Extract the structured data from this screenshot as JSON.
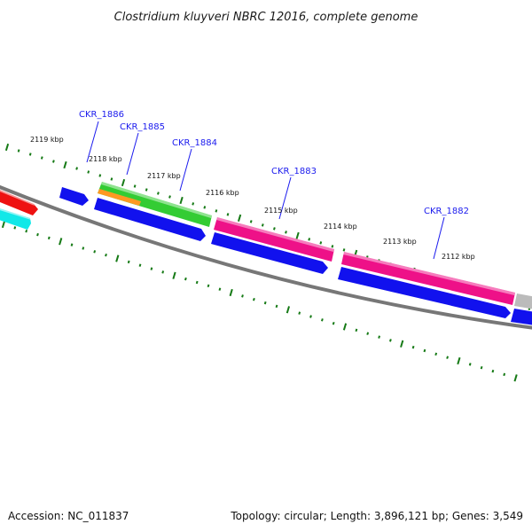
{
  "title": "Clostridium kluyveri NBRC 12016, complete genome",
  "accession": "Accession: NC_011837",
  "summary": "Topology: circular; Length: 3,896,121 bp; Genes: 3,549",
  "colors": {
    "tick": "#167a16",
    "backbone": "#777777",
    "gene_label": "#1a1aee",
    "leader_line": "#1a1aee"
  },
  "scale_labels": [
    "2119 kbp",
    "2118 kbp",
    "2117 kbp",
    "2116 kbp",
    "2115 kbp",
    "2114 kbp",
    "2113 kbp",
    "2112 kbp"
  ],
  "gene_labels": [
    "CKR_1886",
    "CKR_1885",
    "CKR_1884",
    "CKR_1883",
    "CKR_1882"
  ],
  "features": [
    {
      "name": "feature-red",
      "color": "#ee1111",
      "strand": "forward"
    },
    {
      "name": "feature-cyan",
      "color": "#11e8e8",
      "strand": "forward"
    },
    {
      "name": "feature-green",
      "color": "#33cc33",
      "strand": "forward"
    },
    {
      "name": "feature-orange",
      "color": "#ff9922",
      "strand": "forward"
    },
    {
      "name": "feature-magenta-1883",
      "color": "#ee1188",
      "strand": "forward"
    },
    {
      "name": "feature-magenta-1882",
      "color": "#ee1188",
      "strand": "forward"
    },
    {
      "name": "feature-gray",
      "color": "#bbbbbb",
      "strand": "forward"
    },
    {
      "name": "gene-blue-1",
      "color": "#1111ee",
      "strand": "reverse"
    },
    {
      "name": "gene-blue-1886",
      "color": "#1111ee",
      "strand": "reverse"
    },
    {
      "name": "gene-blue-1884",
      "color": "#1111ee",
      "strand": "reverse"
    },
    {
      "name": "gene-blue-1883",
      "color": "#1111ee",
      "strand": "reverse"
    },
    {
      "name": "gene-blue-1882",
      "color": "#1111ee",
      "strand": "reverse"
    }
  ]
}
